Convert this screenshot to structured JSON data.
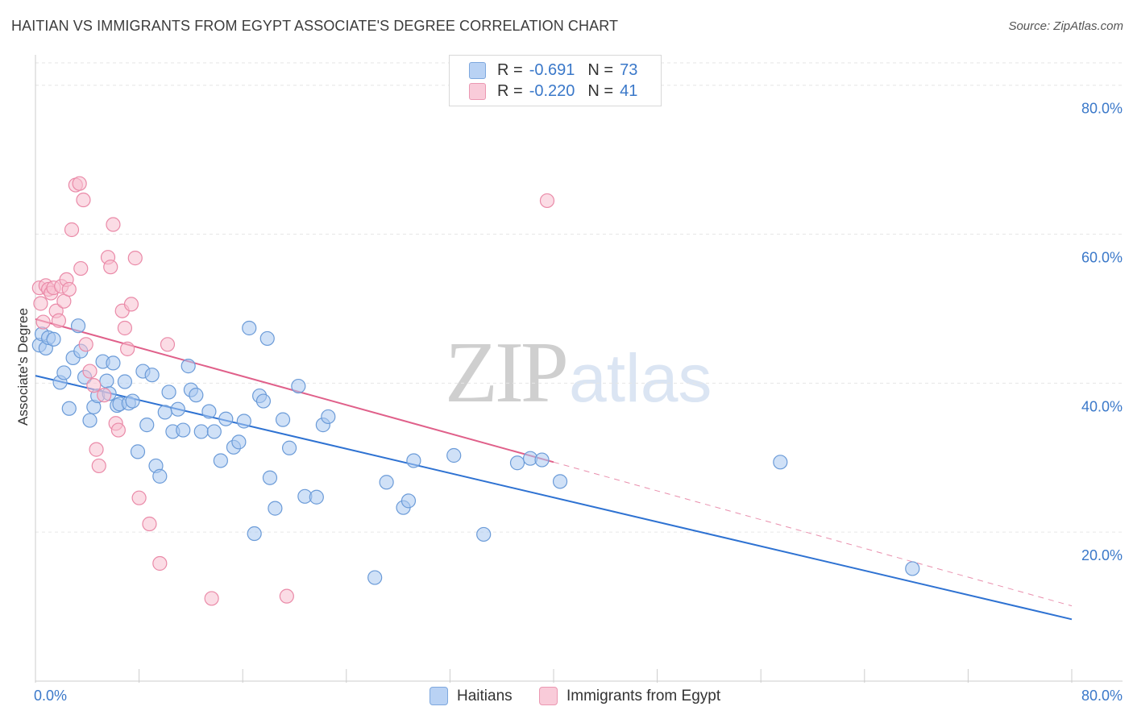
{
  "header": {
    "title": "HAITIAN VS IMMIGRANTS FROM EGYPT ASSOCIATE'S DEGREE CORRELATION CHART",
    "source": "Source: ZipAtlas.com"
  },
  "legend_top": {
    "rows": [
      {
        "r_label": "R =",
        "r_value": "-0.691",
        "n_label": "N =",
        "n_value": "73"
      },
      {
        "r_label": "R =",
        "r_value": "-0.220",
        "n_label": "N =",
        "n_value": "41"
      }
    ]
  },
  "legend_bottom": {
    "items": [
      "Haitians",
      "Immigrants from Egypt"
    ]
  },
  "watermark": {
    "zip": "ZIP",
    "atlas": "atlas"
  },
  "colors": {
    "blue_fill": "#aac8f0",
    "blue_stroke": "#6b9bd8",
    "blue_line": "#2e72d2",
    "pink_fill": "#f7bfd0",
    "pink_stroke": "#ea8aa8",
    "pink_line": "#e0608a",
    "grid": "#e6e6e6",
    "tick_text": "#3a78c9"
  },
  "chart_data": {
    "type": "scatter",
    "title": "HAITIAN VS IMMIGRANTS FROM EGYPT ASSOCIATE'S DEGREE CORRELATION CHART",
    "xlabel": "",
    "ylabel": "Associate's Degree",
    "xlim": [
      0,
      80
    ],
    "ylim": [
      0,
      83
    ],
    "x_tick_labels": [
      "0.0%",
      "80.0%"
    ],
    "y_ticks": [
      20,
      40,
      60,
      80
    ],
    "y_tick_labels": [
      "20.0%",
      "40.0%",
      "60.0%",
      "80.0%"
    ],
    "series": [
      {
        "name": "Haitians",
        "R": -0.691,
        "N": 73,
        "trend": {
          "x": [
            0,
            80
          ],
          "y": [
            41.0,
            8.3
          ]
        },
        "points": [
          [
            0.3,
            45.1
          ],
          [
            0.5,
            46.6
          ],
          [
            0.8,
            44.7
          ],
          [
            1.0,
            46.1
          ],
          [
            1.4,
            45.9
          ],
          [
            1.9,
            40.1
          ],
          [
            2.2,
            41.4
          ],
          [
            2.6,
            36.6
          ],
          [
            2.9,
            43.4
          ],
          [
            3.3,
            47.7
          ],
          [
            3.5,
            44.3
          ],
          [
            3.8,
            40.8
          ],
          [
            4.2,
            35.0
          ],
          [
            4.5,
            36.8
          ],
          [
            4.8,
            38.3
          ],
          [
            5.2,
            42.9
          ],
          [
            5.5,
            40.3
          ],
          [
            5.7,
            38.6
          ],
          [
            6.0,
            42.7
          ],
          [
            6.3,
            37.0
          ],
          [
            6.5,
            37.2
          ],
          [
            6.9,
            40.2
          ],
          [
            7.2,
            37.3
          ],
          [
            7.5,
            37.6
          ],
          [
            7.9,
            30.8
          ],
          [
            8.3,
            41.6
          ],
          [
            8.6,
            34.4
          ],
          [
            9.0,
            41.1
          ],
          [
            9.3,
            28.9
          ],
          [
            9.6,
            27.5
          ],
          [
            10.0,
            36.1
          ],
          [
            10.3,
            38.8
          ],
          [
            10.6,
            33.5
          ],
          [
            11.0,
            36.5
          ],
          [
            11.4,
            33.7
          ],
          [
            11.8,
            42.3
          ],
          [
            12.0,
            39.1
          ],
          [
            12.4,
            38.4
          ],
          [
            12.8,
            33.5
          ],
          [
            13.4,
            36.2
          ],
          [
            13.8,
            33.5
          ],
          [
            14.3,
            29.6
          ],
          [
            14.7,
            35.2
          ],
          [
            15.3,
            31.4
          ],
          [
            15.7,
            32.1
          ],
          [
            16.1,
            34.9
          ],
          [
            16.5,
            47.4
          ],
          [
            16.9,
            19.8
          ],
          [
            17.3,
            38.3
          ],
          [
            17.6,
            37.6
          ],
          [
            18.1,
            27.3
          ],
          [
            18.5,
            23.2
          ],
          [
            19.1,
            35.1
          ],
          [
            19.6,
            31.3
          ],
          [
            20.3,
            39.6
          ],
          [
            20.8,
            24.8
          ],
          [
            21.7,
            24.7
          ],
          [
            22.2,
            34.4
          ],
          [
            22.6,
            35.5
          ],
          [
            26.2,
            13.9
          ],
          [
            27.1,
            26.7
          ],
          [
            28.4,
            23.3
          ],
          [
            28.8,
            24.2
          ],
          [
            29.2,
            29.6
          ],
          [
            32.3,
            30.3
          ],
          [
            34.6,
            19.7
          ],
          [
            37.2,
            29.3
          ],
          [
            38.2,
            29.9
          ],
          [
            39.1,
            29.7
          ],
          [
            40.5,
            26.8
          ],
          [
            57.5,
            29.4
          ],
          [
            67.7,
            15.1
          ],
          [
            17.9,
            46.0
          ]
        ]
      },
      {
        "name": "Immigrants from Egypt",
        "R": -0.22,
        "N": 41,
        "trend": {
          "x": [
            0,
            40
          ],
          "y": [
            48.6,
            29.4
          ]
        },
        "trend_dashed": {
          "x": [
            40,
            80
          ],
          "y": [
            29.4,
            10.1
          ]
        },
        "points": [
          [
            0.3,
            52.8
          ],
          [
            0.4,
            50.7
          ],
          [
            0.6,
            48.2
          ],
          [
            0.8,
            53.1
          ],
          [
            1.0,
            52.6
          ],
          [
            1.2,
            52.1
          ],
          [
            1.4,
            52.8
          ],
          [
            1.6,
            49.7
          ],
          [
            1.8,
            48.4
          ],
          [
            2.0,
            53.0
          ],
          [
            2.2,
            51.0
          ],
          [
            2.4,
            53.9
          ],
          [
            2.6,
            52.6
          ],
          [
            2.8,
            60.6
          ],
          [
            3.1,
            66.6
          ],
          [
            3.4,
            66.8
          ],
          [
            3.5,
            55.4
          ],
          [
            3.7,
            64.6
          ],
          [
            3.9,
            45.2
          ],
          [
            4.2,
            41.6
          ],
          [
            4.5,
            39.7
          ],
          [
            4.7,
            31.1
          ],
          [
            4.9,
            28.9
          ],
          [
            5.3,
            38.4
          ],
          [
            5.6,
            56.9
          ],
          [
            5.8,
            55.6
          ],
          [
            6.0,
            61.3
          ],
          [
            6.2,
            34.6
          ],
          [
            6.4,
            33.7
          ],
          [
            6.7,
            49.7
          ],
          [
            6.9,
            47.4
          ],
          [
            7.1,
            44.6
          ],
          [
            7.4,
            50.6
          ],
          [
            7.7,
            56.8
          ],
          [
            8.0,
            24.6
          ],
          [
            8.8,
            21.1
          ],
          [
            9.6,
            15.8
          ],
          [
            10.2,
            45.2
          ],
          [
            13.6,
            11.1
          ],
          [
            19.4,
            11.4
          ],
          [
            39.5,
            64.5
          ]
        ]
      }
    ]
  }
}
